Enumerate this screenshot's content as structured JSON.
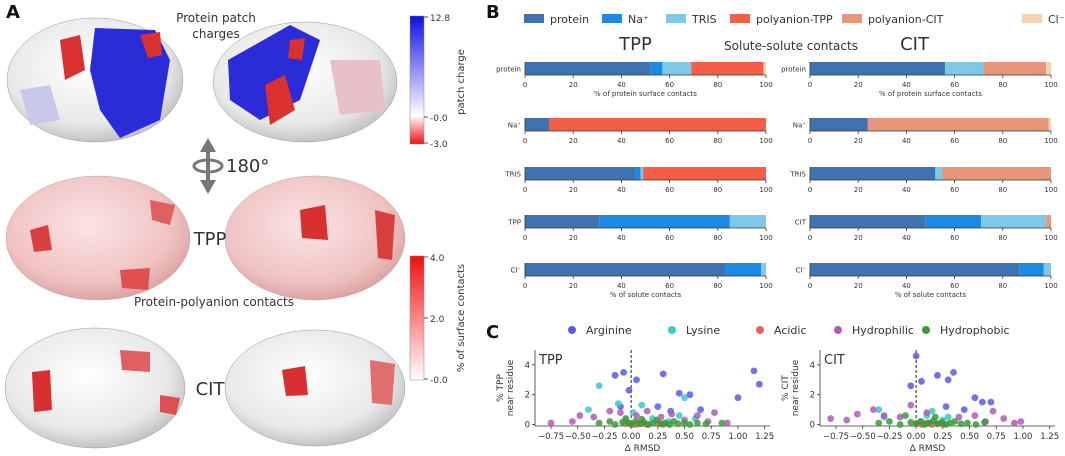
{
  "panels": {
    "a": "A",
    "b": "B",
    "c": "C"
  },
  "panel_a": {
    "title_charges": "Protein patch\ncharges",
    "rotation_label": "180°",
    "label_tpp": "TPP",
    "label_contacts": "Protein-polyanion contacts",
    "label_cit": "CIT",
    "colorbar_charge": {
      "label": "patch charge",
      "ticks": [
        "12.8",
        "-0.0",
        "-3.0"
      ]
    },
    "colorbar_contacts": {
      "label": "% of surface contacts",
      "ticks": [
        "4.0",
        "2.0",
        "-0.0"
      ]
    }
  },
  "colors": {
    "protein": "#3f73b0",
    "na": "#1e88e5",
    "tris": "#7ec8e8",
    "poly_tpp": "#f25e46",
    "poly_cit": "#e8967a",
    "cl": "#f9d3b0",
    "arginine": "#5a5ae0",
    "lysine": "#3cc8c8",
    "acidic": "#e86060",
    "hydrophilic": "#b05ab8",
    "hydrophobic": "#3a9a3a"
  },
  "chart_data": [
    {
      "id": "B",
      "type": "bar",
      "orientation": "horizontal",
      "stacked": true,
      "title": "Solute-solute contacts",
      "legend": [
        "protein",
        "Na⁺",
        "TRIS",
        "polyanion-TPP",
        "polyanion-CIT",
        "Cl⁻"
      ],
      "xlim": [
        0,
        100
      ],
      "xticks": [
        "0",
        "20",
        "40",
        "60",
        "80",
        "100"
      ],
      "xlabel_top": "% of protein surface contacts",
      "xlabel_bottom": "% of solute contacts",
      "subplots": [
        {
          "title": "TPP",
          "rows": [
            {
              "label": "protein",
              "values": [
                52,
                5,
                12,
                30,
                0,
                1
              ]
            },
            {
              "label": "Na⁺",
              "values": [
                10,
                0,
                0,
                90,
                0,
                0
              ]
            },
            {
              "label": "TRIS",
              "values": [
                46,
                2,
                1,
                51,
                0,
                0
              ]
            },
            {
              "label": "TPP",
              "values": [
                31,
                54,
                15,
                0,
                0,
                0
              ]
            },
            {
              "label": "Cl⁻",
              "values": [
                83,
                15,
                2,
                0,
                0,
                0
              ]
            }
          ]
        },
        {
          "title": "CIT",
          "rows": [
            {
              "label": "protein",
              "values": [
                56,
                0,
                16,
                0,
                26,
                2
              ]
            },
            {
              "label": "Na⁺",
              "values": [
                24,
                0,
                0,
                0,
                75,
                1
              ]
            },
            {
              "label": "TRIS",
              "values": [
                52,
                0,
                3,
                0,
                45,
                0
              ]
            },
            {
              "label": "CIT",
              "values": [
                48,
                23,
                27,
                0,
                2,
                0
              ]
            },
            {
              "label": "Cl⁻",
              "values": [
                87,
                10,
                3,
                0,
                0,
                0
              ]
            }
          ]
        }
      ]
    },
    {
      "id": "C",
      "type": "scatter",
      "legend": [
        "Arginine",
        "Lysine",
        "Acidic",
        "Hydrophilic",
        "Hydrophobic"
      ],
      "xlabel": "Δ RMSD",
      "xlim": [
        -0.9,
        1.3
      ],
      "ylim": [
        -0.1,
        5.0
      ],
      "xticks": [
        "−0.75",
        "−0.50",
        "−0.25",
        "0.00",
        "0.25",
        "0.50",
        "0.75",
        "1.00",
        "1.25"
      ],
      "xtick_values": [
        -0.75,
        -0.5,
        -0.25,
        0,
        0.25,
        0.5,
        0.75,
        1.0,
        1.25
      ],
      "yticks": [
        "0",
        "2",
        "4"
      ],
      "ytick_values": [
        0,
        2,
        4
      ],
      "subplots": [
        {
          "title": "TPP",
          "ylabel": "% TPP\nnear residue",
          "series": [
            {
              "name": "Arginine",
              "points": [
                [
                  -0.15,
                  3.3
                ],
                [
                  -0.07,
                  3.5
                ],
                [
                  -0.02,
                  2.3
                ],
                [
                  0.05,
                  3.0
                ],
                [
                  0.25,
                  1.2
                ],
                [
                  0.3,
                  3.4
                ],
                [
                  0.37,
                  0.9
                ],
                [
                  0.55,
                  2.0
                ],
                [
                  0.65,
                  1.0
                ],
                [
                  1.0,
                  1.8
                ],
                [
                  1.15,
                  3.6
                ],
                [
                  1.2,
                  2.7
                ],
                [
                  0.45,
                  2.1
                ],
                [
                  -0.1,
                  1.2
                ]
              ]
            },
            {
              "name": "Lysine",
              "points": [
                [
                  -0.3,
                  2.6
                ],
                [
                  -0.4,
                  1.0
                ],
                [
                  -0.12,
                  1.4
                ],
                [
                  0.02,
                  0.8
                ],
                [
                  0.1,
                  1.3
                ],
                [
                  0.2,
                  0.4
                ],
                [
                  0.35,
                  0.2
                ],
                [
                  0.45,
                  0.6
                ],
                [
                  0.5,
                  1.8
                ],
                [
                  -0.05,
                  0.3
                ],
                [
                  0.6,
                  0.4
                ]
              ]
            },
            {
              "name": "Acidic",
              "points": [
                [
                  -0.05,
                  0.05
                ],
                [
                  0.02,
                  0.0
                ],
                [
                  0.08,
                  0.1
                ],
                [
                  0.15,
                  0.0
                ],
                [
                  0.25,
                  0.05
                ],
                [
                  0.3,
                  0.0
                ],
                [
                  0.1,
                  0.05
                ],
                [
                  0.05,
                  0.0
                ]
              ]
            },
            {
              "name": "Hydrophilic",
              "points": [
                [
                  -0.75,
                  0.1
                ],
                [
                  -0.55,
                  0.2
                ],
                [
                  -0.48,
                  0.6
                ],
                [
                  -0.35,
                  0.5
                ],
                [
                  -0.2,
                  0.9
                ],
                [
                  -0.1,
                  0.8
                ],
                [
                  0.05,
                  0.6
                ],
                [
                  0.15,
                  0.9
                ],
                [
                  0.28,
                  0.5
                ],
                [
                  0.38,
                  0.7
                ],
                [
                  0.5,
                  0.3
                ],
                [
                  0.62,
                  0.6
                ],
                [
                  0.72,
                  0.2
                ],
                [
                  0.9,
                  0.1
                ],
                [
                  0.78,
                  0.8
                ]
              ]
            },
            {
              "name": "Hydrophobic",
              "points": [
                [
                  -0.3,
                  0.1
                ],
                [
                  -0.2,
                  0.2
                ],
                [
                  -0.15,
                  0.0
                ],
                [
                  -0.08,
                  0.15
                ],
                [
                  -0.02,
                  0.1
                ],
                [
                  0.0,
                  0.0
                ],
                [
                  0.04,
                  0.2
                ],
                [
                  0.08,
                  0.05
                ],
                [
                  0.12,
                  0.15
                ],
                [
                  0.16,
                  0.0
                ],
                [
                  0.2,
                  0.1
                ],
                [
                  0.24,
                  0.3
                ],
                [
                  0.28,
                  0.05
                ],
                [
                  0.32,
                  0.1
                ],
                [
                  0.36,
                  0.0
                ],
                [
                  0.4,
                  0.2
                ],
                [
                  0.44,
                  0.05
                ],
                [
                  0.5,
                  0.1
                ],
                [
                  0.55,
                  0.0
                ],
                [
                  0.62,
                  0.1
                ],
                [
                  0.7,
                  0.05
                ],
                [
                  0.85,
                  0.1
                ],
                [
                  -0.05,
                  0.4
                ],
                [
                  0.1,
                  0.35
                ]
              ]
            }
          ]
        },
        {
          "title": "CIT",
          "ylabel": "% CIT\nnear residue",
          "series": [
            {
              "name": "Arginine",
              "points": [
                [
                  0.0,
                  4.6
                ],
                [
                  -0.05,
                  2.6
                ],
                [
                  0.05,
                  2.9
                ],
                [
                  0.2,
                  3.3
                ],
                [
                  0.3,
                  3.0
                ],
                [
                  0.35,
                  3.5
                ],
                [
                  0.45,
                  1.0
                ],
                [
                  0.55,
                  1.8
                ],
                [
                  0.62,
                  1.5
                ],
                [
                  0.7,
                  1.5
                ],
                [
                  0.28,
                  1.2
                ]
              ]
            },
            {
              "name": "Lysine",
              "points": [
                [
                  -0.35,
                  1.0
                ],
                [
                  -0.3,
                  0.5
                ],
                [
                  0.1,
                  0.6
                ],
                [
                  0.15,
                  0.9
                ],
                [
                  0.25,
                  0.3
                ],
                [
                  0.05,
                  0.2
                ],
                [
                  0.3,
                  0.5
                ]
              ]
            },
            {
              "name": "Acidic",
              "points": [
                [
                  0.0,
                  0.05
                ],
                [
                  0.05,
                  0.0
                ],
                [
                  0.1,
                  0.1
                ],
                [
                  0.15,
                  0.0
                ],
                [
                  0.2,
                  0.05
                ],
                [
                  0.25,
                  0.0
                ]
              ]
            },
            {
              "name": "Hydrophilic",
              "points": [
                [
                  -0.8,
                  0.4
                ],
                [
                  -0.65,
                  0.3
                ],
                [
                  -0.55,
                  0.7
                ],
                [
                  -0.4,
                  1.0
                ],
                [
                  -0.3,
                  0.6
                ],
                [
                  -0.15,
                  0.5
                ],
                [
                  -0.05,
                  1.3
                ],
                [
                  0.1,
                  0.8
                ],
                [
                  0.4,
                  0.5
                ],
                [
                  0.55,
                  0.6
                ],
                [
                  0.65,
                  0.2
                ],
                [
                  0.72,
                  0.9
                ],
                [
                  0.82,
                  0.4
                ],
                [
                  0.92,
                  0.1
                ],
                [
                  0.98,
                  0.2
                ]
              ]
            },
            {
              "name": "Hydrophobic",
              "points": [
                [
                  -0.35,
                  0.1
                ],
                [
                  -0.25,
                  0.2
                ],
                [
                  -0.15,
                  0.0
                ],
                [
                  -0.05,
                  0.15
                ],
                [
                  0.0,
                  0.05
                ],
                [
                  0.04,
                  0.2
                ],
                [
                  0.08,
                  0.0
                ],
                [
                  0.12,
                  0.1
                ],
                [
                  0.16,
                  0.25
                ],
                [
                  0.2,
                  0.05
                ],
                [
                  0.24,
                  0.15
                ],
                [
                  0.28,
                  0.0
                ],
                [
                  0.32,
                  0.1
                ],
                [
                  0.36,
                  0.2
                ],
                [
                  0.42,
                  0.05
                ],
                [
                  0.48,
                  0.1
                ],
                [
                  0.56,
                  0.0
                ],
                [
                  0.64,
                  0.15
                ],
                [
                  -0.1,
                  0.6
                ],
                [
                  0.18,
                  0.5
                ]
              ]
            }
          ]
        }
      ]
    }
  ]
}
